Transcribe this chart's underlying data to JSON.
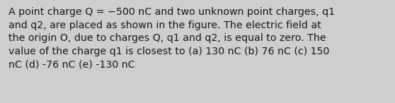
{
  "text": "A point charge Q = −500 nC and two unknown point charges, q1\nand q2, are placed as shown in the figure. The electric field at\nthe origin O, due to charges Q, q1 and q2, is equal to zero. The\nvalue of the charge q1 is closest to (a) 130 nC (b) 76 nC (c) 150\nnC (d) -76 nC (e) -130 nC",
  "background_color": "#cecece",
  "text_color": "#1a1a1a",
  "font_size": 10.2,
  "fig_width": 5.58,
  "fig_height": 1.46
}
